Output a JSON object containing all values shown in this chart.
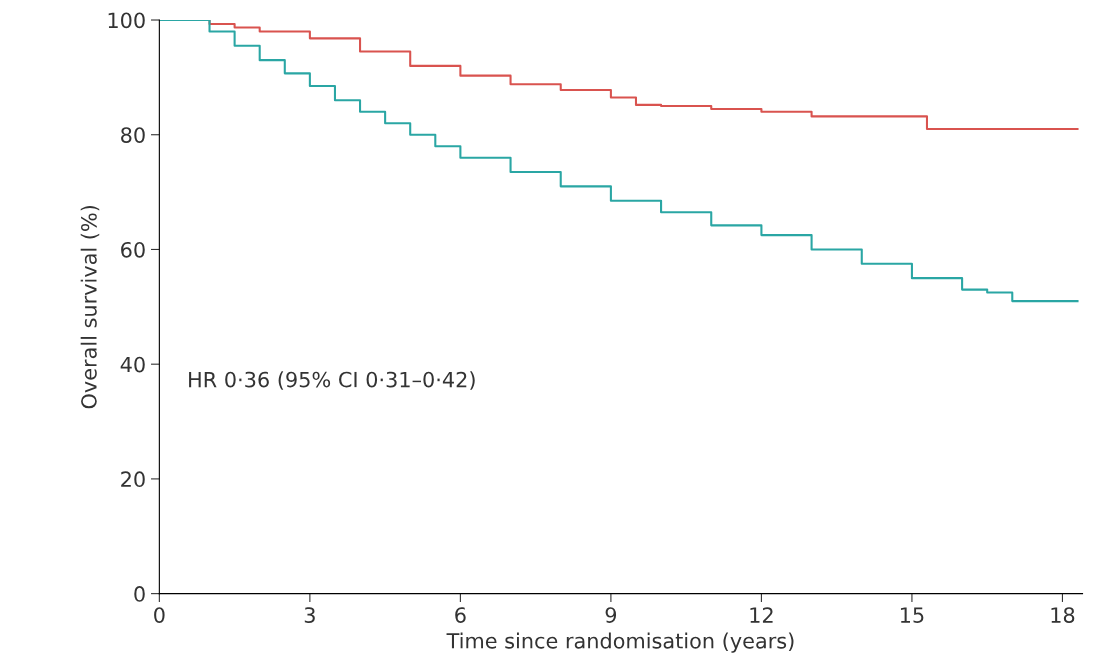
{
  "chart_data": {
    "type": "step",
    "xlabel": "Time since randomisation (years)",
    "ylabel": "Overall survival (%)",
    "xlim": [
      0,
      18.4
    ],
    "ylim": [
      0,
      100
    ],
    "xticks": [
      0,
      3,
      6,
      9,
      12,
      15,
      18
    ],
    "yticks": [
      0,
      20,
      40,
      60,
      80,
      100
    ],
    "grid": false,
    "legend": false,
    "annotations": [
      "HR 0·36 (95% CI 0·31–0·42)"
    ],
    "series": [
      {
        "color": "#d9534f",
        "x": [
          0,
          0.5,
          1,
          1.5,
          2,
          3,
          4,
          5,
          6,
          7,
          8,
          9,
          9.5,
          10,
          11,
          12,
          13,
          14,
          15,
          15.3,
          18.3
        ],
        "values": [
          100,
          100,
          99.3,
          98.7,
          98,
          96.8,
          94.5,
          92,
          90.3,
          88.8,
          87.8,
          86.5,
          85.2,
          85,
          84.5,
          84,
          83.2,
          83.2,
          83.2,
          81,
          81
        ]
      },
      {
        "color": "#2aa6a4",
        "x": [
          0,
          0.5,
          1,
          1.5,
          2,
          2.5,
          3,
          3.5,
          4,
          4.5,
          5,
          5.5,
          6,
          7,
          8,
          9,
          10,
          11,
          12,
          13,
          14,
          15,
          16,
          16.5,
          17,
          18.3
        ],
        "values": [
          100,
          100,
          98,
          95.5,
          93,
          90.7,
          88.5,
          86,
          84,
          82,
          80,
          78,
          76,
          73.5,
          71,
          68.5,
          66.5,
          64.2,
          62.5,
          60,
          57.5,
          55,
          53,
          52.5,
          51,
          51
        ]
      }
    ]
  }
}
